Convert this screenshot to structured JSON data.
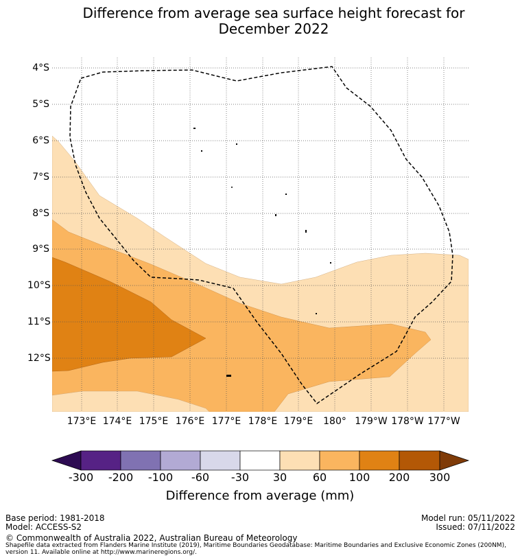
{
  "title": {
    "line1": "Difference from average sea surface height forecast for",
    "line2": "December 2022"
  },
  "map": {
    "lat_labels": [
      "4°S",
      "5°S",
      "6°S",
      "7°S",
      "8°S",
      "9°S",
      "10°S",
      "11°S",
      "12°S"
    ],
    "lon_labels": [
      "173°E",
      "174°E",
      "175°E",
      "176°E",
      "177°E",
      "178°E",
      "179°E",
      "180°",
      "179°W",
      "178°W",
      "177°W"
    ],
    "lat_extent": [
      "3.8°S",
      "13.5°S"
    ],
    "lon_extent": [
      "172.2°E",
      "176.6°W"
    ],
    "boundary": "Exclusive Economic Zone (dashed)",
    "gridlines": "dotted"
  },
  "colorbar": {
    "title": "Difference from average (mm)",
    "ticks": [
      "-300",
      "-200",
      "-100",
      "-60",
      "-30",
      "30",
      "60",
      "100",
      "200",
      "300"
    ],
    "colors": [
      "#2d0b52",
      "#562285",
      "#8072b2",
      "#b2aad4",
      "#d8d8ea",
      "#ffffff",
      "#fddfb4",
      "#fab55f",
      "#e08214",
      "#b35806",
      "#7f3b08"
    ]
  },
  "footer": {
    "base_period": "Base period: 1981-2018",
    "model": "Model: ACCESS-S2",
    "model_run": "Model run: 05/11/2022",
    "issued": "Issued: 07/11/2022",
    "copyright": "© Commonwealth of Australia 2022, Australian Bureau of Meteorology",
    "shapefile_note": "Shapefile data extracted from Flanders Marine Institute (2019), Maritime Boundaries Geodatabase: Maritime Boundaries and Exclusive Economic Zones (200NM), version 11. Available online at http://www.marineregions.org/."
  }
}
